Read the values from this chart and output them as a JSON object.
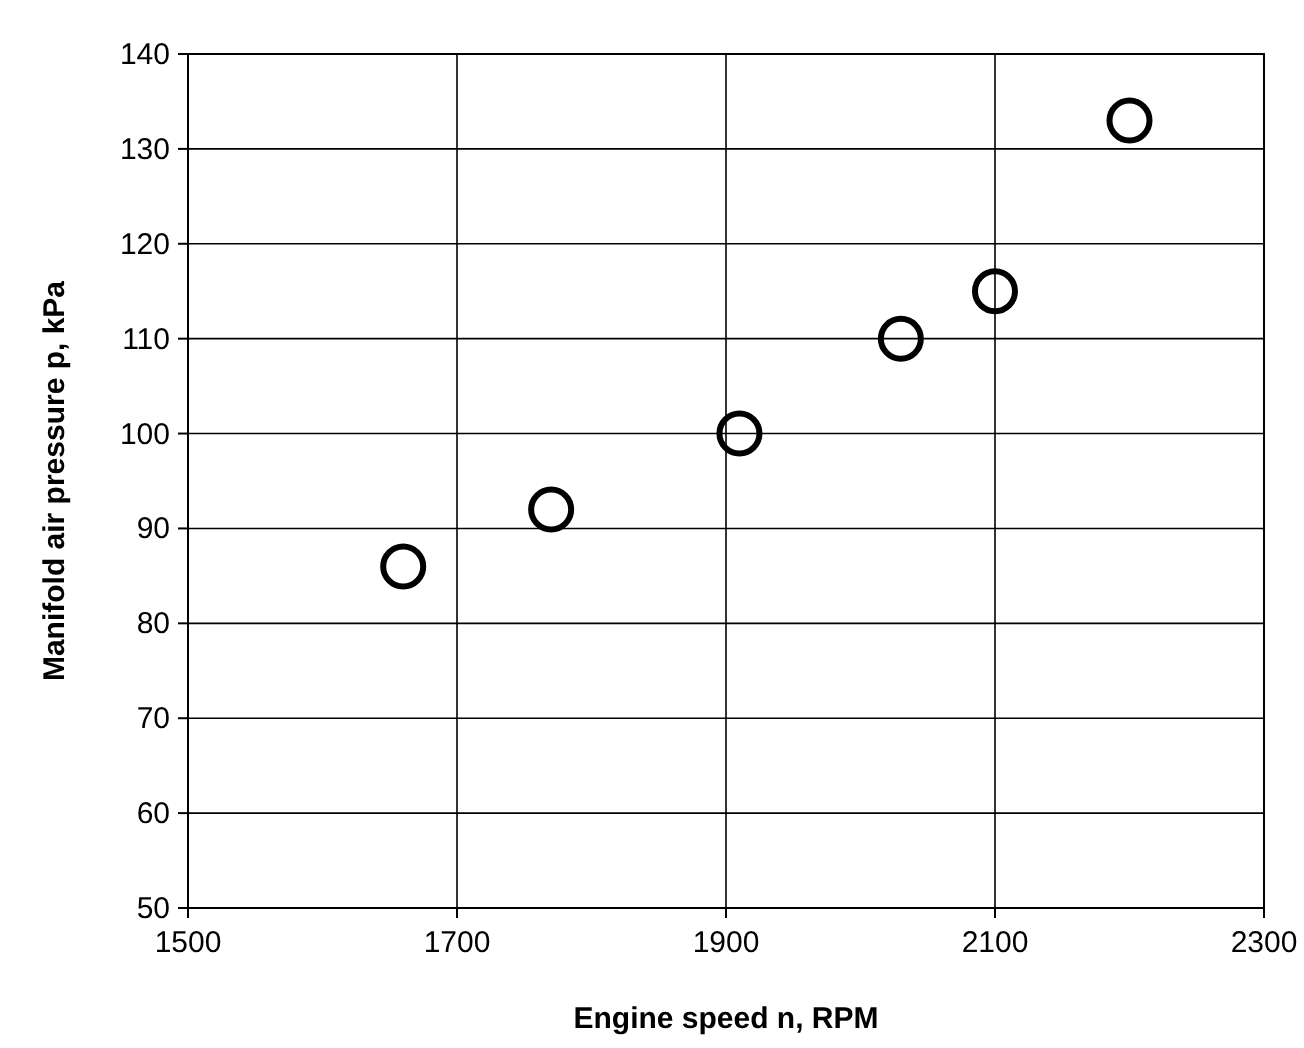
{
  "chart_data": {
    "type": "scatter",
    "xlabel": "Engine speed n, RPM",
    "ylabel": "Manifold air pressure p, kPa",
    "x": [
      1660,
      1770,
      1910,
      2030,
      2100,
      2200
    ],
    "series": [
      {
        "color": "#000000",
        "values": [
          86,
          92,
          100,
          110,
          115,
          133
        ]
      }
    ],
    "xlim": [
      1500,
      2300
    ],
    "xticks": [
      1500,
      1700,
      1900,
      2100,
      2300
    ],
    "ylim": [
      50,
      140
    ],
    "yticks": [
      50,
      60,
      70,
      80,
      90,
      100,
      110,
      120,
      130,
      140
    ],
    "grid": true,
    "marker": "circle"
  }
}
